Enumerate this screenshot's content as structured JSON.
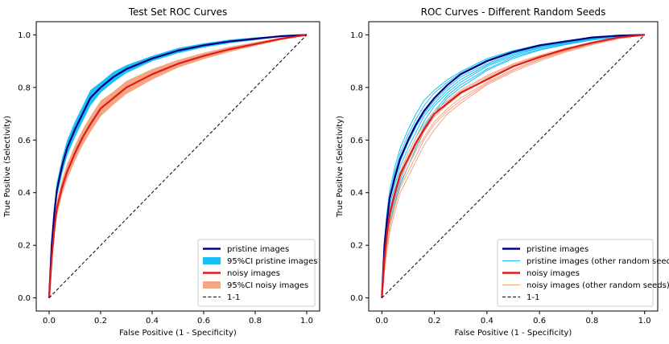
{
  "chart_data": [
    {
      "type": "line",
      "title": "Test Set ROC Curves",
      "xlabel": "False Positive (1 - Specificity)",
      "ylabel": "True Positive (Selectivity)",
      "xlim": [
        -0.05,
        1.05
      ],
      "ylim": [
        -0.05,
        1.05
      ],
      "xticks": [
        0.0,
        0.2,
        0.4,
        0.6,
        0.8,
        1.0
      ],
      "yticks": [
        0.0,
        0.2,
        0.4,
        0.6,
        0.8,
        1.0
      ],
      "xtick_labels": [
        "0.0",
        "0.2",
        "0.4",
        "0.6",
        "0.8",
        "1.0"
      ],
      "ytick_labels": [
        "0.0",
        "0.2",
        "0.4",
        "0.6",
        "0.8",
        "1.0"
      ],
      "legend_position": "lower-right",
      "series": [
        {
          "name": "pristine images",
          "kind": "line",
          "color": "#00007f",
          "x": [
            0,
            0.01,
            0.02,
            0.03,
            0.05,
            0.07,
            0.1,
            0.13,
            0.16,
            0.2,
            0.25,
            0.3,
            0.4,
            0.5,
            0.6,
            0.7,
            0.8,
            0.9,
            1.0
          ],
          "y": [
            0,
            0.2,
            0.32,
            0.41,
            0.5,
            0.57,
            0.64,
            0.7,
            0.76,
            0.8,
            0.84,
            0.87,
            0.91,
            0.94,
            0.96,
            0.975,
            0.985,
            0.995,
            1.0
          ]
        },
        {
          "name": "95%CI pristine images",
          "kind": "band",
          "color": "#19bff5",
          "x": [
            0,
            0.01,
            0.02,
            0.03,
            0.05,
            0.07,
            0.1,
            0.13,
            0.16,
            0.2,
            0.25,
            0.3,
            0.4,
            0.5,
            0.6,
            0.7,
            0.8,
            0.9,
            1.0
          ],
          "lower": [
            0,
            0.17,
            0.29,
            0.38,
            0.47,
            0.54,
            0.61,
            0.67,
            0.73,
            0.78,
            0.82,
            0.855,
            0.9,
            0.93,
            0.952,
            0.968,
            0.98,
            0.993,
            1.0
          ],
          "upper": [
            0,
            0.23,
            0.35,
            0.44,
            0.53,
            0.6,
            0.67,
            0.73,
            0.79,
            0.82,
            0.86,
            0.885,
            0.92,
            0.95,
            0.968,
            0.982,
            0.99,
            0.997,
            1.0
          ]
        },
        {
          "name": "noisy images",
          "kind": "line",
          "color": "#e01a1a",
          "x": [
            0,
            0.01,
            0.02,
            0.03,
            0.05,
            0.07,
            0.1,
            0.13,
            0.16,
            0.2,
            0.25,
            0.3,
            0.4,
            0.5,
            0.6,
            0.7,
            0.8,
            0.9,
            1.0
          ],
          "y": [
            0,
            0.15,
            0.26,
            0.34,
            0.42,
            0.48,
            0.55,
            0.61,
            0.66,
            0.72,
            0.76,
            0.8,
            0.85,
            0.89,
            0.92,
            0.945,
            0.965,
            0.985,
            1.0
          ]
        },
        {
          "name": "95%CI noisy images",
          "kind": "band",
          "color": "#f4a582",
          "x": [
            0,
            0.01,
            0.02,
            0.03,
            0.05,
            0.07,
            0.1,
            0.13,
            0.16,
            0.2,
            0.25,
            0.3,
            0.4,
            0.5,
            0.6,
            0.7,
            0.8,
            0.9,
            1.0
          ],
          "lower": [
            0,
            0.12,
            0.23,
            0.31,
            0.39,
            0.45,
            0.52,
            0.58,
            0.63,
            0.69,
            0.735,
            0.775,
            0.83,
            0.875,
            0.908,
            0.935,
            0.958,
            0.98,
            1.0
          ],
          "upper": [
            0,
            0.18,
            0.29,
            0.37,
            0.45,
            0.51,
            0.58,
            0.64,
            0.69,
            0.75,
            0.785,
            0.825,
            0.87,
            0.905,
            0.932,
            0.955,
            0.972,
            0.99,
            1.0
          ]
        },
        {
          "name": "1-1",
          "kind": "dashed",
          "color": "#000000",
          "x": [
            0,
            1
          ],
          "y": [
            0,
            1
          ]
        }
      ]
    },
    {
      "type": "line",
      "title": "ROC Curves - Different Random Seeds",
      "xlabel": "False Positive (1 - Specificity)",
      "ylabel": "True Positive (Selectivity)",
      "xlim": [
        -0.05,
        1.05
      ],
      "ylim": [
        -0.05,
        1.05
      ],
      "xticks": [
        0.0,
        0.2,
        0.4,
        0.6,
        0.8,
        1.0
      ],
      "yticks": [
        0.0,
        0.2,
        0.4,
        0.6,
        0.8,
        1.0
      ],
      "xtick_labels": [
        "0.0",
        "0.2",
        "0.4",
        "0.6",
        "0.8",
        "1.0"
      ],
      "ytick_labels": [
        "0.0",
        "0.2",
        "0.4",
        "0.6",
        "0.8",
        "1.0"
      ],
      "legend_position": "lower-right",
      "series": [
        {
          "name": "pristine images",
          "kind": "line",
          "color": "#00007f",
          "x": [
            0,
            0.01,
            0.02,
            0.03,
            0.05,
            0.07,
            0.1,
            0.13,
            0.16,
            0.2,
            0.25,
            0.3,
            0.4,
            0.5,
            0.6,
            0.7,
            0.8,
            0.9,
            1.0
          ],
          "y": [
            0,
            0.2,
            0.3,
            0.38,
            0.46,
            0.53,
            0.6,
            0.66,
            0.71,
            0.76,
            0.81,
            0.85,
            0.9,
            0.935,
            0.96,
            0.975,
            0.99,
            0.997,
            1.0
          ]
        },
        {
          "name": "pristine images (other random seeds)",
          "kind": "lines",
          "color": "#19bff5",
          "x": [
            0,
            0.01,
            0.02,
            0.03,
            0.05,
            0.07,
            0.1,
            0.13,
            0.16,
            0.2,
            0.25,
            0.3,
            0.4,
            0.5,
            0.6,
            0.7,
            0.8,
            0.9,
            1.0
          ],
          "curves": [
            [
              0,
              0.22,
              0.33,
              0.41,
              0.5,
              0.57,
              0.64,
              0.7,
              0.75,
              0.79,
              0.83,
              0.86,
              0.91,
              0.94,
              0.962,
              0.978,
              0.99,
              0.997,
              1.0
            ],
            [
              0,
              0.19,
              0.29,
              0.37,
              0.45,
              0.52,
              0.59,
              0.65,
              0.7,
              0.75,
              0.8,
              0.84,
              0.89,
              0.93,
              0.955,
              0.972,
              0.986,
              0.995,
              1.0
            ],
            [
              0,
              0.16,
              0.26,
              0.33,
              0.41,
              0.48,
              0.55,
              0.61,
              0.67,
              0.73,
              0.78,
              0.82,
              0.88,
              0.92,
              0.95,
              0.968,
              0.984,
              0.994,
              1.0
            ],
            [
              0,
              0.14,
              0.23,
              0.3,
              0.38,
              0.45,
              0.52,
              0.59,
              0.65,
              0.71,
              0.77,
              0.81,
              0.87,
              0.915,
              0.945,
              0.965,
              0.982,
              0.993,
              1.0
            ],
            [
              0,
              0.2,
              0.31,
              0.39,
              0.48,
              0.55,
              0.62,
              0.68,
              0.73,
              0.78,
              0.82,
              0.855,
              0.905,
              0.937,
              0.958,
              0.975,
              0.988,
              0.996,
              1.0
            ],
            [
              0,
              0.17,
              0.27,
              0.35,
              0.43,
              0.5,
              0.57,
              0.63,
              0.69,
              0.74,
              0.79,
              0.83,
              0.885,
              0.925,
              0.952,
              0.97,
              0.985,
              0.995,
              1.0
            ],
            [
              0,
              0.12,
              0.21,
              0.28,
              0.36,
              0.43,
              0.5,
              0.57,
              0.63,
              0.7,
              0.76,
              0.8,
              0.865,
              0.91,
              0.942,
              0.963,
              0.98,
              0.992,
              1.0
            ]
          ]
        },
        {
          "name": "noisy images",
          "kind": "line",
          "color": "#e01a1a",
          "x": [
            0,
            0.01,
            0.02,
            0.03,
            0.05,
            0.07,
            0.1,
            0.13,
            0.16,
            0.2,
            0.25,
            0.3,
            0.4,
            0.5,
            0.6,
            0.7,
            0.8,
            0.9,
            1.0
          ],
          "y": [
            0,
            0.15,
            0.25,
            0.32,
            0.4,
            0.47,
            0.53,
            0.59,
            0.64,
            0.7,
            0.74,
            0.78,
            0.83,
            0.88,
            0.915,
            0.945,
            0.97,
            0.99,
            1.0
          ]
        },
        {
          "name": "noisy images (other random seeds)",
          "kind": "lines",
          "color": "#f4a582",
          "x": [
            0,
            0.01,
            0.02,
            0.03,
            0.05,
            0.07,
            0.1,
            0.13,
            0.16,
            0.2,
            0.25,
            0.3,
            0.4,
            0.5,
            0.6,
            0.7,
            0.8,
            0.9,
            1.0
          ],
          "curves": [
            [
              0,
              0.16,
              0.26,
              0.33,
              0.41,
              0.48,
              0.55,
              0.61,
              0.66,
              0.71,
              0.75,
              0.79,
              0.845,
              0.89,
              0.922,
              0.95,
              0.972,
              0.99,
              1.0
            ],
            [
              0,
              0.13,
              0.22,
              0.29,
              0.37,
              0.44,
              0.5,
              0.56,
              0.61,
              0.67,
              0.72,
              0.76,
              0.82,
              0.87,
              0.908,
              0.94,
              0.966,
              0.987,
              1.0
            ],
            [
              0,
              0.11,
              0.2,
              0.27,
              0.35,
              0.42,
              0.48,
              0.54,
              0.6,
              0.66,
              0.71,
              0.75,
              0.815,
              0.865,
              0.905,
              0.938,
              0.964,
              0.986,
              1.0
            ],
            [
              0,
              0.14,
              0.24,
              0.31,
              0.39,
              0.46,
              0.52,
              0.58,
              0.63,
              0.69,
              0.735,
              0.775,
              0.835,
              0.882,
              0.918,
              0.947,
              0.97,
              0.989,
              1.0
            ],
            [
              0,
              0.1,
              0.18,
              0.25,
              0.33,
              0.4,
              0.46,
              0.52,
              0.58,
              0.64,
              0.7,
              0.74,
              0.81,
              0.86,
              0.9,
              0.935,
              0.962,
              0.985,
              1.0
            ],
            [
              0,
              0.15,
              0.25,
              0.32,
              0.4,
              0.47,
              0.535,
              0.595,
              0.645,
              0.7,
              0.745,
              0.785,
              0.84,
              0.886,
              0.92,
              0.948,
              0.971,
              0.99,
              1.0
            ]
          ]
        },
        {
          "name": "1-1",
          "kind": "dashed",
          "color": "#000000",
          "x": [
            0,
            1
          ],
          "y": [
            0,
            1
          ]
        }
      ]
    }
  ]
}
